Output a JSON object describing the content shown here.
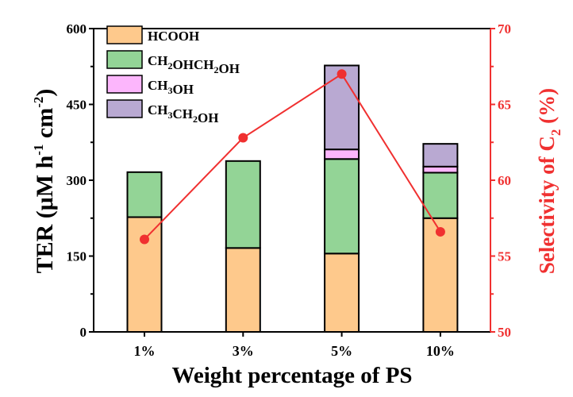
{
  "chart_data": {
    "type": "bar",
    "stacked": true,
    "categories": [
      "1%",
      "3%",
      "5%",
      "10%"
    ],
    "xlabel": "Weight percentage of PS",
    "ylabel": "TER (μM h-1 cm-2)",
    "ylabel_parts": {
      "main": "TER (μM h",
      "sup1": "-1",
      "mid": " cm",
      "sup2": "-2",
      "end": ")"
    },
    "ylim": [
      0,
      600
    ],
    "yticks": [
      0,
      150,
      300,
      450,
      600
    ],
    "y2label": "Selectivity of C2 (%)",
    "y2label_parts": {
      "main": "Selectivity of C",
      "sub": "2",
      "end": " (%)"
    },
    "y2lim": [
      50,
      70
    ],
    "y2ticks": [
      50,
      55,
      60,
      65,
      70
    ],
    "legend_position": "top-left",
    "grid": false,
    "series": [
      {
        "name": "HCOOH",
        "color": "#fec98c",
        "values": [
          227,
          166,
          155,
          225
        ]
      },
      {
        "name": "CH2OHCH2OH",
        "color": "#93d496",
        "values": [
          89,
          172,
          187,
          90
        ]
      },
      {
        "name": "CH3OH",
        "color": "#fcb6fc",
        "values": [
          0,
          0,
          19,
          12
        ]
      },
      {
        "name": "CH3CH2OH",
        "color": "#b9a9d2",
        "values": [
          0,
          0,
          166,
          45
        ]
      }
    ],
    "line_series": {
      "axis": "right",
      "color": "#f03030",
      "values": [
        56.1,
        62.8,
        67.0,
        56.6
      ]
    }
  }
}
